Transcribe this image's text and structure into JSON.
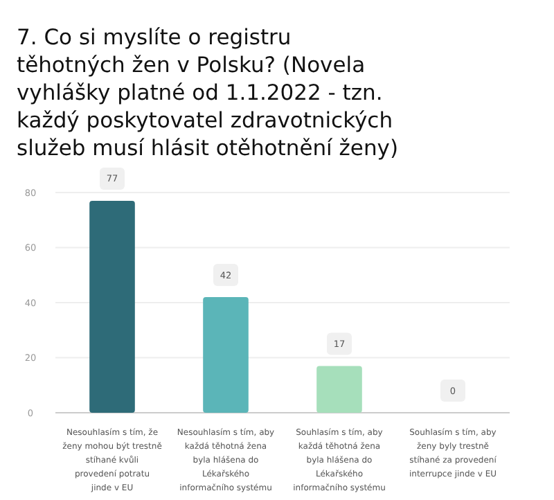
{
  "chart_data": {
    "type": "bar",
    "title": "7. Co si myslíte o registru těhotných žen v Polsku? (Novela vyhlášky platné od 1.1.2022 - tzn. každý poskytovatel zdravotnických služeb musí hlásit otěhotnění ženy)",
    "categories": [
      "Nesouhlasím s tím, že ženy mohou být trestně stíhané kvůli provedení potratu jinde v EU",
      "Nesouhlasím s tím, aby každá těhotná žena byla hlášena do Lékařského informačního systému",
      "Souhlasím s tím, aby každá těhotná žena byla hlášena do Lékařského informačního systému",
      "Souhlasím s tím, aby ženy byly trestně stíhané za provedení interrupce jinde v EU"
    ],
    "values": [
      77,
      42,
      17,
      0
    ],
    "colors": [
      "#2e6b78",
      "#5bb5b8",
      "#a6dfbb",
      "#c8eed6"
    ],
    "ylim": [
      0,
      80
    ],
    "yticks": [
      0,
      20,
      40,
      60,
      80
    ],
    "grid": "y",
    "data_labels": true
  }
}
